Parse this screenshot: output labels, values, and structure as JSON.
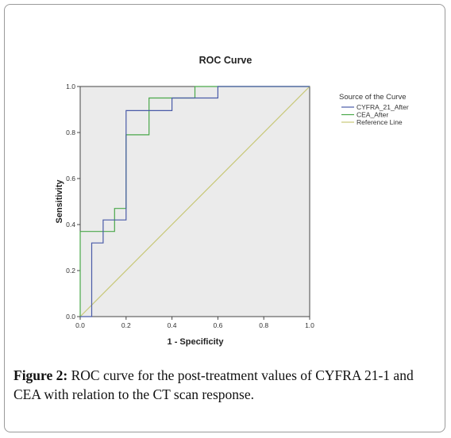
{
  "chart_data": {
    "type": "line",
    "title": "ROC Curve",
    "xlabel": "1 - Specificity",
    "ylabel": "Sensitivity",
    "xlim": [
      0,
      1
    ],
    "ylim": [
      0,
      1
    ],
    "x_ticks": [
      "0.0",
      "0.2",
      "0.4",
      "0.6",
      "0.8",
      "1.0"
    ],
    "y_ticks": [
      "0.0",
      "0.2",
      "0.4",
      "0.6",
      "0.8",
      "1.0"
    ],
    "grid": false,
    "plot_background": "#ebebeb",
    "legend": {
      "title": "Source of the Curve",
      "placement": "right"
    },
    "series": [
      {
        "name": "CYFRA_21_After",
        "color": "#4a5ba8",
        "x": [
          0,
          0.05,
          0.05,
          0.1,
          0.1,
          0.2,
          0.2,
          0.4,
          0.4,
          0.6,
          0.6,
          0.65,
          0.65,
          1.0
        ],
        "y": [
          0,
          0,
          0.32,
          0.32,
          0.42,
          0.42,
          0.895,
          0.895,
          0.95,
          0.95,
          1.0,
          1.0,
          1.0,
          1.0
        ]
      },
      {
        "name": "CEA_After",
        "color": "#4aa84a",
        "x": [
          0,
          0,
          0.05,
          0.05,
          0.15,
          0.15,
          0.2,
          0.2,
          0.3,
          0.3,
          0.5,
          0.5,
          1.0
        ],
        "y": [
          0,
          0.37,
          0.37,
          0.37,
          0.37,
          0.47,
          0.47,
          0.79,
          0.79,
          0.95,
          0.95,
          1.0,
          1.0
        ]
      },
      {
        "name": "Reference Line",
        "color": "#c8c878",
        "x": [
          0,
          1
        ],
        "y": [
          0,
          1
        ]
      }
    ]
  },
  "caption": {
    "label": "Figure 2:",
    "text": " ROC curve for the post-treatment values of CYFRA 21-1 and CEA with relation to the CT scan response."
  }
}
